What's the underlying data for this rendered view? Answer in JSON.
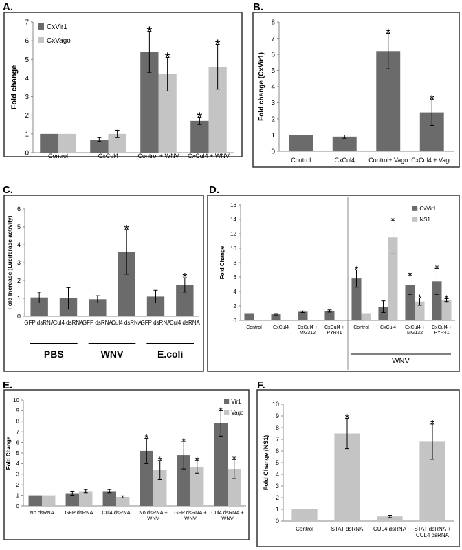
{
  "chart_data": [
    {
      "id": "A",
      "panel_label": "A.",
      "type": "bar",
      "ylabel": "Fold change",
      "ylim": [
        0,
        7
      ],
      "yticks": [
        0,
        1,
        2,
        3,
        4,
        5,
        6,
        7
      ],
      "categories": [
        "Control",
        "CxCul4",
        "Control + WNV",
        "CxCul4   + WNV"
      ],
      "legend_position": "top-left",
      "series": [
        {
          "name": "CxVir1",
          "color": "#6b6b6b",
          "values": [
            1.0,
            0.7,
            5.4,
            1.7
          ],
          "errors": [
            0.0,
            0.1,
            1.1,
            0.2
          ],
          "stars": [
            false,
            false,
            true,
            true
          ]
        },
        {
          "name": "CxVago",
          "color": "#c4c4c4",
          "values": [
            1.0,
            1.0,
            4.2,
            4.6
          ],
          "errors": [
            0.0,
            0.2,
            0.9,
            1.2
          ],
          "stars": [
            false,
            false,
            true,
            true
          ]
        }
      ],
      "star_symbol": "*"
    },
    {
      "id": "B",
      "panel_label": "B.",
      "type": "bar",
      "ylabel": "Fold change (CxVir1)",
      "ylim": [
        0,
        8
      ],
      "yticks": [
        0,
        1,
        2,
        3,
        4,
        5,
        6,
        7,
        8
      ],
      "categories": [
        "Control",
        "CxCul4",
        "Control+ Vago",
        "CxCul4  + Vago"
      ],
      "series": [
        {
          "color": "#6b6b6b",
          "values": [
            1.0,
            0.9,
            6.2,
            2.4
          ],
          "errors": [
            0.0,
            0.1,
            1.1,
            0.8
          ],
          "stars": [
            false,
            false,
            true,
            true
          ]
        }
      ],
      "star_symbol": "*"
    },
    {
      "id": "C",
      "panel_label": "C.",
      "type": "bar",
      "ylabel": "Fold Increase (Luciferase activity)",
      "ylim": [
        0,
        6
      ],
      "yticks": [
        0,
        1,
        2,
        3,
        4,
        5,
        6
      ],
      "categories": [
        "GFP dsRNA",
        "Cul4 dsRNA",
        "GFP dsRNA",
        "Cul4 dsRNA",
        "GFP dsRNA",
        "Cul4 dsRNA"
      ],
      "groups": [
        "PBS",
        "WNV",
        "E.coli"
      ],
      "series": [
        {
          "color": "#6b6b6b",
          "values": [
            1.05,
            1.0,
            0.95,
            3.6,
            1.1,
            1.75
          ],
          "errors": [
            0.3,
            0.6,
            0.2,
            1.25,
            0.35,
            0.4
          ],
          "stars": [
            false,
            false,
            false,
            true,
            false,
            true
          ]
        }
      ],
      "star_symbol": "*"
    },
    {
      "id": "D",
      "panel_label": "D.",
      "type": "bar",
      "ylabel": "Fold Change",
      "ylim": [
        0,
        16
      ],
      "yticks": [
        0,
        2,
        4,
        6,
        8,
        10,
        12,
        14,
        16
      ],
      "categories": [
        "Control",
        "CxCul4",
        "CxCul4 +\nMG312",
        "CxCul4 +\nPYR41",
        "Control",
        "CxCul4",
        "CxCul4 +\nMG132",
        "CxCul4 +\nPYR41"
      ],
      "group_label": "WNV",
      "legend_position": "top-right",
      "series": [
        {
          "name": "CxVir1",
          "color": "#6b6b6b",
          "values": [
            1.0,
            0.85,
            1.2,
            1.3,
            5.8,
            1.9,
            4.9,
            5.4
          ],
          "errors": [
            0.0,
            0.1,
            0.1,
            0.15,
            1.2,
            0.8,
            1.3,
            1.8
          ],
          "stars": [
            false,
            false,
            false,
            false,
            true,
            false,
            true,
            true
          ]
        },
        {
          "name": "NS1",
          "color": "#c4c4c4",
          "values": [
            null,
            null,
            null,
            null,
            1.0,
            11.5,
            2.6,
            2.8
          ],
          "errors": [
            0,
            0,
            0,
            0,
            0.0,
            2.3,
            0.5,
            0.2
          ],
          "stars": [
            false,
            false,
            false,
            false,
            false,
            true,
            true,
            true
          ]
        }
      ],
      "star_symbol": "*"
    },
    {
      "id": "E",
      "panel_label": "E.",
      "type": "bar",
      "ylabel": "Fold Change",
      "ylim": [
        0,
        10
      ],
      "yticks": [
        0,
        1,
        2,
        3,
        4,
        5,
        6,
        7,
        8,
        9,
        10
      ],
      "categories": [
        "No dsRNA",
        "GFP dsRNA",
        "Cul4 dsRNA",
        "No dsRNA +\nWNV",
        "GFP dsRNA +\nWNV",
        "Cul4 dsRNA +\nWNV"
      ],
      "legend_position": "top-right",
      "series": [
        {
          "name": "Vir1",
          "color": "#6b6b6b",
          "values": [
            1.0,
            1.2,
            1.4,
            5.2,
            4.8,
            7.8
          ],
          "errors": [
            0.0,
            0.2,
            0.15,
            1.2,
            1.3,
            1.2
          ],
          "stars": [
            false,
            false,
            false,
            true,
            true,
            true
          ]
        },
        {
          "name": "Vago",
          "color": "#c4c4c4",
          "values": [
            1.0,
            1.4,
            0.85,
            3.4,
            3.7,
            3.5
          ],
          "errors": [
            0.0,
            0.15,
            0.1,
            0.9,
            0.6,
            0.9
          ],
          "stars": [
            false,
            false,
            false,
            true,
            true,
            true
          ]
        }
      ],
      "star_symbol": "*"
    },
    {
      "id": "F",
      "panel_label": "F.",
      "type": "bar",
      "ylabel": "Fold Change (NS1)",
      "ylim": [
        0,
        10
      ],
      "yticks": [
        0,
        1,
        2,
        3,
        4,
        5,
        6,
        7,
        8,
        9,
        10
      ],
      "categories": [
        "Control",
        "STAT dsRNA",
        "CUL4 dsRNA",
        "STAT dsRNA +\nCUL4 dsRNA"
      ],
      "series": [
        {
          "color": "#c4c4c4",
          "values": [
            1.0,
            7.5,
            0.4,
            6.8
          ],
          "errors": [
            0.0,
            1.3,
            0.1,
            1.5
          ],
          "stars": [
            false,
            true,
            false,
            true
          ]
        }
      ],
      "star_symbol": "*"
    }
  ]
}
